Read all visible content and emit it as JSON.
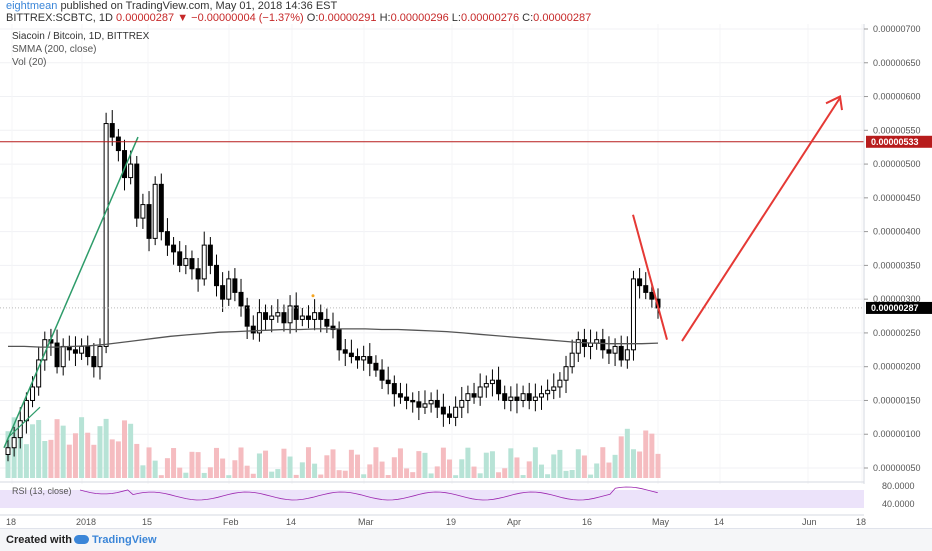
{
  "header": {
    "author": "eightmean",
    "published_text": "published on TradingView.com, May 01, 2018 14:36 EST",
    "symbol": "BITTREX:SCBTC, 1D",
    "last": "0.00000287",
    "change": "−0.00000004 (−1.37%)",
    "o_label": "O:",
    "o": "0.00000291",
    "h_label": "H:",
    "h": "0.00000296",
    "l_label": "L:",
    "l": "0.00000276",
    "c_label": "C:",
    "c": "0.00000287"
  },
  "legend": {
    "title": "Siacoin / Bitcoin, 1D, BITTREX",
    "smma": "SMMA (200, close)",
    "vol": "Vol (20)"
  },
  "rsi": {
    "label": "RSI (13, close)",
    "ticks": [
      "80.0000",
      "40.0000"
    ]
  },
  "footer": {
    "created": "Created with",
    "brand": "TradingView"
  },
  "colors": {
    "up": "#26a69a",
    "down": "#ef5350",
    "candle": "#000000",
    "resistance": "#b71c1c",
    "arrow": "#e53935",
    "trendline": "#2e9c6a",
    "smma": "#555555",
    "rsi_band": "#ece3fa",
    "rsi_line": "#9c27b0",
    "price_tag": "#b71c1c",
    "last_tag": "#000000"
  },
  "chart_data": {
    "type": "candlestick",
    "x_ticks": [
      "18",
      "2018",
      "15",
      "Feb",
      "14",
      "Mar",
      "19",
      "Apr",
      "16",
      "May",
      "14",
      "Jun",
      "18"
    ],
    "y_ticks": [
      "0.00000700",
      "0.00000650",
      "0.00000600",
      "0.00000550",
      "0.00000500",
      "0.00000450",
      "0.00000400",
      "0.00000350",
      "0.00000300",
      "0.00000250",
      "0.00000200",
      "0.00000150",
      "0.00000100",
      "0.00000050"
    ],
    "y_values": [
      700,
      650,
      600,
      550,
      500,
      450,
      400,
      350,
      300,
      250,
      200,
      150,
      100,
      50
    ],
    "ylim": [
      40,
      710
    ],
    "resistance_label": "0.00000533",
    "resistance_value": 533,
    "last_label": "0.00000287",
    "last_value": 287,
    "series_close": [
      80,
      95,
      120,
      150,
      170,
      210,
      240,
      235,
      200,
      230,
      225,
      220,
      230,
      215,
      200,
      230,
      560,
      540,
      520,
      480,
      500,
      420,
      440,
      390,
      470,
      400,
      380,
      370,
      350,
      360,
      345,
      330,
      380,
      350,
      320,
      300,
      330,
      310,
      290,
      260,
      250,
      280,
      270,
      275,
      280,
      265,
      290,
      270,
      275,
      270,
      280,
      270,
      260,
      255,
      225,
      220,
      215,
      210,
      215,
      205,
      195,
      180,
      175,
      160,
      155,
      150,
      148,
      140,
      145,
      150,
      140,
      130,
      125,
      140,
      150,
      160,
      155,
      170,
      175,
      180,
      160,
      150,
      155,
      150,
      160,
      150,
      155,
      160,
      165,
      170,
      180,
      200,
      220,
      240,
      230,
      235,
      240,
      225,
      220,
      230,
      210,
      225,
      330,
      320,
      310,
      300,
      287
    ],
    "smma": [
      230,
      230,
      229,
      229,
      230,
      231,
      233,
      236,
      239,
      242,
      245,
      247,
      249,
      251,
      252,
      253,
      254,
      255,
      255,
      256,
      256,
      256,
      256,
      255,
      255,
      254,
      253,
      252,
      250,
      248,
      246,
      244,
      242,
      240,
      238,
      236,
      235,
      234,
      234,
      234,
      235
    ],
    "volume_note": "relative volume bars"
  }
}
